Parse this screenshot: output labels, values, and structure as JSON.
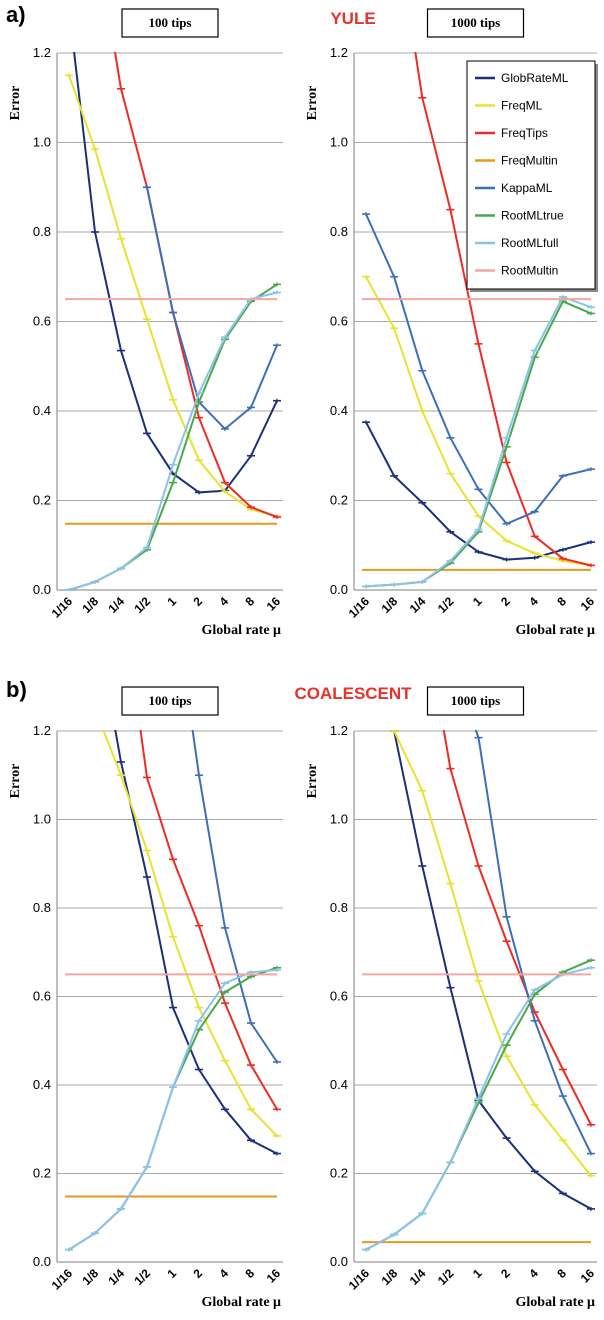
{
  "colors": {
    "GlobRateML": "#1c2f7a",
    "FreqML": "#e9e22f",
    "FreqTips": "#ee2b24",
    "FreqMultin": "#e59a1e",
    "KappaML": "#3d6fb8",
    "RootMLtrue": "#49a94a",
    "RootMLfull": "#8cc2ea",
    "RootMultin": "#f3a7a0"
  },
  "legend": [
    "GlobRateML",
    "FreqML",
    "FreqTips",
    "FreqMultin",
    "KappaML",
    "RootMLtrue",
    "RootMLfull",
    "RootMultin"
  ],
  "panels": [
    {
      "letter": "a)",
      "title": "YULE"
    },
    {
      "letter": "b)",
      "title": "COALESCENT"
    }
  ],
  "chart_data": [
    {
      "type": "line",
      "panel": "a",
      "subtitle": "100 tips",
      "xlabel": "Global rate μ",
      "ylabel": "Error",
      "x": [
        "1/16",
        "1/8",
        "1/4",
        "1/2",
        "1",
        "2",
        "4",
        "8",
        "16"
      ],
      "ylim": [
        0,
        1.2
      ],
      "yticks": [
        "0.0",
        "0.2",
        "0.4",
        "0.6",
        "0.8",
        "1.0",
        "1.2"
      ],
      "series": [
        {
          "name": "GlobRateML",
          "values": [
            1.3,
            0.8,
            0.535,
            0.35,
            0.26,
            0.218,
            0.222,
            0.3,
            0.423
          ]
        },
        {
          "name": "FreqML",
          "values": [
            1.15,
            0.985,
            0.785,
            0.605,
            0.425,
            0.29,
            0.22,
            0.18,
            0.165
          ]
        },
        {
          "name": "FreqTips",
          "values": [
            null,
            null,
            1.12,
            0.9,
            0.62,
            0.385,
            0.24,
            0.185,
            0.163
          ]
        },
        {
          "name": "FreqMultin",
          "values": [
            0.148,
            0.148,
            0.148,
            0.148,
            0.148,
            0.148,
            0.148,
            0.148,
            0.148
          ]
        },
        {
          "name": "KappaML",
          "values": [
            null,
            null,
            null,
            0.9,
            0.62,
            0.42,
            0.36,
            0.408,
            0.547
          ]
        },
        {
          "name": "RootMLtrue",
          "values": [
            0.0,
            0.018,
            0.048,
            0.09,
            0.24,
            0.42,
            0.56,
            0.645,
            0.683
          ]
        },
        {
          "name": "RootMLfull",
          "values": [
            0.0,
            0.018,
            0.048,
            0.095,
            0.28,
            0.44,
            0.565,
            0.65,
            0.665
          ]
        },
        {
          "name": "RootMultin",
          "values": [
            0.65,
            0.65,
            0.65,
            0.65,
            0.65,
            0.65,
            0.65,
            0.65,
            0.65
          ]
        }
      ]
    },
    {
      "type": "line",
      "panel": "a",
      "subtitle": "1000 tips",
      "xlabel": "Global rate μ",
      "ylabel": "Error",
      "x": [
        "1/16",
        "1/8",
        "1/4",
        "1/2",
        "1",
        "2",
        "4",
        "8",
        "16"
      ],
      "ylim": [
        0,
        1.2
      ],
      "yticks": [
        "0.0",
        "0.2",
        "0.4",
        "0.6",
        "0.8",
        "1.0",
        "1.2"
      ],
      "series": [
        {
          "name": "GlobRateML",
          "values": [
            0.375,
            0.255,
            0.195,
            0.13,
            0.085,
            0.068,
            0.072,
            0.09,
            0.107
          ]
        },
        {
          "name": "FreqML",
          "values": [
            0.7,
            0.585,
            0.4,
            0.26,
            0.165,
            0.11,
            0.082,
            0.065,
            0.055
          ]
        },
        {
          "name": "FreqTips",
          "values": [
            null,
            null,
            1.1,
            0.85,
            0.55,
            0.285,
            0.12,
            0.07,
            0.055
          ]
        },
        {
          "name": "FreqMultin",
          "values": [
            0.045,
            0.045,
            0.045,
            0.045,
            0.045,
            0.045,
            0.045,
            0.045,
            0.045
          ]
        },
        {
          "name": "KappaML",
          "values": [
            0.84,
            0.7,
            0.49,
            0.34,
            0.225,
            0.148,
            0.175,
            0.255,
            0.27
          ]
        },
        {
          "name": "RootMLtrue",
          "values": [
            0.008,
            0.012,
            0.018,
            0.06,
            0.13,
            0.32,
            0.52,
            0.645,
            0.618
          ]
        },
        {
          "name": "RootMLfull",
          "values": [
            0.008,
            0.012,
            0.018,
            0.065,
            0.135,
            0.34,
            0.535,
            0.655,
            0.632
          ]
        },
        {
          "name": "RootMultin",
          "values": [
            0.65,
            0.65,
            0.65,
            0.65,
            0.65,
            0.65,
            0.65,
            0.65,
            0.65
          ]
        }
      ]
    },
    {
      "type": "line",
      "panel": "b",
      "subtitle": "100 tips",
      "xlabel": "Global rate μ",
      "ylabel": "Error",
      "x": [
        "1/16",
        "1/8",
        "1/4",
        "1/2",
        "1",
        "2",
        "4",
        "8",
        "16"
      ],
      "ylim": [
        0,
        1.2
      ],
      "yticks": [
        "0.0",
        "0.2",
        "0.4",
        "0.6",
        "0.8",
        "1.0",
        "1.2"
      ],
      "series": [
        {
          "name": "GlobRateML",
          "values": [
            null,
            null,
            1.13,
            0.87,
            0.575,
            0.435,
            0.345,
            0.275,
            0.245
          ]
        },
        {
          "name": "FreqML",
          "values": [
            null,
            1.25,
            1.1,
            0.93,
            0.735,
            0.575,
            0.455,
            0.345,
            0.285
          ]
        },
        {
          "name": "FreqTips",
          "values": [
            null,
            null,
            null,
            1.095,
            0.91,
            0.76,
            0.585,
            0.445,
            0.345
          ]
        },
        {
          "name": "FreqMultin",
          "values": [
            0.148,
            0.148,
            0.148,
            0.148,
            0.148,
            0.148,
            0.148,
            0.148,
            0.148
          ]
        },
        {
          "name": "KappaML",
          "values": [
            null,
            null,
            null,
            null,
            null,
            1.1,
            0.755,
            0.54,
            0.452
          ]
        },
        {
          "name": "RootMLtrue",
          "values": [
            0.028,
            0.065,
            0.12,
            0.215,
            0.395,
            0.525,
            0.61,
            0.645,
            0.665
          ]
        },
        {
          "name": "RootMLfull",
          "values": [
            0.028,
            0.065,
            0.12,
            0.215,
            0.395,
            0.545,
            0.63,
            0.655,
            0.66
          ]
        },
        {
          "name": "RootMultin",
          "values": [
            0.65,
            0.65,
            0.65,
            0.65,
            0.65,
            0.65,
            0.65,
            0.65,
            0.65
          ]
        }
      ]
    },
    {
      "type": "line",
      "panel": "b",
      "subtitle": "1000 tips",
      "xlabel": "Global rate μ",
      "ylabel": "Error",
      "x": [
        "1/16",
        "1/8",
        "1/4",
        "1/2",
        "1",
        "2",
        "4",
        "8",
        "16"
      ],
      "ylim": [
        0,
        1.2
      ],
      "yticks": [
        "0.0",
        "0.2",
        "0.4",
        "0.6",
        "0.8",
        "1.0",
        "1.2"
      ],
      "series": [
        {
          "name": "GlobRateML",
          "values": [
            null,
            1.2,
            0.895,
            0.62,
            0.365,
            0.28,
            0.205,
            0.155,
            0.12
          ]
        },
        {
          "name": "FreqML",
          "values": [
            null,
            1.2,
            1.065,
            0.855,
            0.635,
            0.465,
            0.355,
            0.275,
            0.195
          ]
        },
        {
          "name": "FreqTips",
          "values": [
            null,
            null,
            null,
            1.115,
            0.895,
            0.725,
            0.565,
            0.435,
            0.31
          ]
        },
        {
          "name": "FreqMultin",
          "values": [
            0.045,
            0.045,
            0.045,
            0.045,
            0.045,
            0.045,
            0.045,
            0.045,
            0.045
          ]
        },
        {
          "name": "KappaML",
          "values": [
            null,
            null,
            null,
            null,
            1.185,
            0.78,
            0.545,
            0.375,
            0.245
          ]
        },
        {
          "name": "RootMLtrue",
          "values": [
            0.028,
            0.062,
            0.11,
            0.225,
            0.36,
            0.49,
            0.605,
            0.655,
            0.682
          ]
        },
        {
          "name": "RootMLfull",
          "values": [
            0.028,
            0.062,
            0.11,
            0.225,
            0.37,
            0.515,
            0.615,
            0.65,
            0.665
          ]
        },
        {
          "name": "RootMultin",
          "values": [
            0.65,
            0.65,
            0.65,
            0.65,
            0.65,
            0.65,
            0.65,
            0.65,
            0.65
          ]
        }
      ]
    }
  ]
}
